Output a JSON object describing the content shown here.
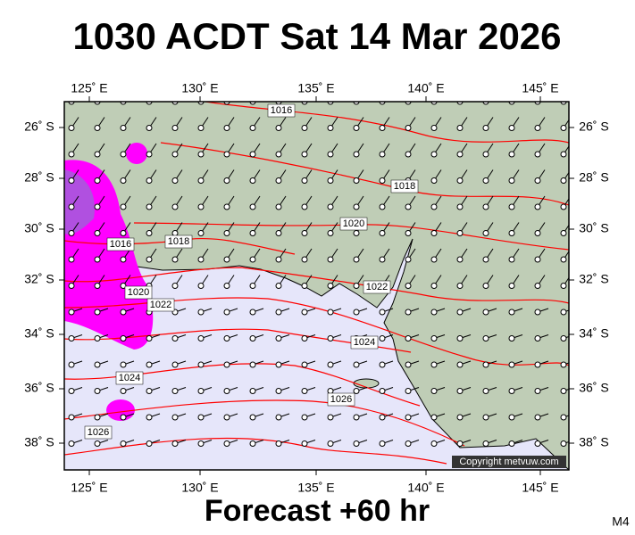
{
  "title": "1030 ACDT Sat 14 Mar 2026",
  "lon_labels": [
    "125˚ E",
    "130˚ E",
    "135˚ E",
    "140˚ E",
    "145˚ E"
  ],
  "lat_labels": [
    "26˚ S",
    "28˚ S",
    "30˚ S",
    "32˚ S",
    "34˚ S",
    "36˚ S",
    "38˚ S"
  ],
  "isobar_labels": [
    "1016",
    "1018",
    "1020",
    "1016",
    "1018",
    "1020",
    "1022",
    "1022",
    "1024",
    "1024",
    "1026",
    "1026"
  ],
  "copyright": "Copyright metvuw.com",
  "footer": "Forecast +60 hr",
  "code": "M4"
}
